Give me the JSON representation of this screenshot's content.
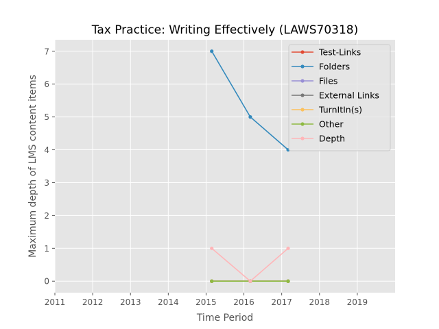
{
  "chart_data": {
    "type": "line",
    "title": "Tax Practice: Writing Effectively (LAWS70318)",
    "xlabel": "Time Period",
    "ylabel": "Maximum depth of LMS content items",
    "xlim": [
      2011,
      2020
    ],
    "ylim": [
      -0.35,
      7.35
    ],
    "xticks": [
      "2011",
      "2012",
      "2013",
      "2014",
      "2015",
      "2016",
      "2017",
      "2018",
      "2019"
    ],
    "yticks": [
      "0",
      "1",
      "2",
      "3",
      "4",
      "5",
      "6",
      "7"
    ],
    "grid": true,
    "legend_position": "top-right",
    "x": [
      2015.15,
      2016.17,
      2017.17
    ],
    "series": [
      {
        "name": "Test-Links",
        "color": "#E24A33",
        "values": [
          0,
          0,
          0
        ]
      },
      {
        "name": "Folders",
        "color": "#348ABD",
        "values": [
          7,
          5,
          4
        ]
      },
      {
        "name": "Files",
        "color": "#988ED5",
        "values": [
          0,
          0,
          0
        ]
      },
      {
        "name": "External Links",
        "color": "#777777",
        "values": [
          0,
          0,
          0
        ]
      },
      {
        "name": "TurnItIn(s)",
        "color": "#FBC15E",
        "values": [
          0,
          0,
          0
        ]
      },
      {
        "name": "Other",
        "color": "#8EBA42",
        "values": [
          0,
          0,
          0
        ]
      },
      {
        "name": "Depth",
        "color": "#FFB5B8",
        "values": [
          1,
          0,
          1
        ]
      }
    ]
  }
}
